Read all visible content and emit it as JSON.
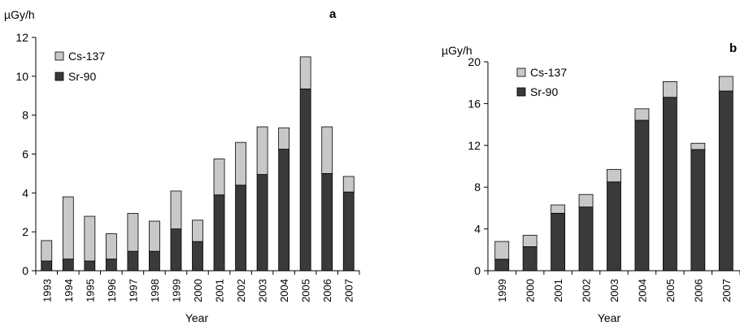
{
  "chart_data": [
    {
      "type": "bar",
      "stacked": true,
      "panel_label": "a",
      "ylabel": "µGy/h",
      "xlabel": "Year",
      "ylim": [
        0,
        12
      ],
      "yticks": [
        0,
        2,
        4,
        6,
        8,
        10,
        12
      ],
      "legend_position": "top-left",
      "categories": [
        "1993",
        "1994",
        "1995",
        "1996",
        "1997",
        "1998",
        "1999",
        "2000",
        "2001",
        "2002",
        "2003",
        "2004",
        "2005",
        "2006",
        "2007"
      ],
      "series": [
        {
          "name": "Sr-90",
          "color": "#3a3a3a",
          "values": [
            0.5,
            0.6,
            0.5,
            0.6,
            1.0,
            1.0,
            2.15,
            1.5,
            3.9,
            4.4,
            4.95,
            6.25,
            9.35,
            5.0,
            4.05
          ]
        },
        {
          "name": "Cs-137",
          "color": "#c8c8c8",
          "values": [
            1.05,
            3.2,
            2.3,
            1.3,
            1.95,
            1.55,
            1.95,
            1.1,
            1.85,
            2.2,
            2.45,
            1.1,
            1.65,
            2.4,
            0.8
          ]
        }
      ]
    },
    {
      "type": "bar",
      "stacked": true,
      "panel_label": "b",
      "ylabel": "µGy/h",
      "xlabel": "Year",
      "ylim": [
        0,
        20
      ],
      "yticks": [
        0,
        4,
        8,
        12,
        16,
        20
      ],
      "legend_position": "top-left",
      "categories": [
        "1999",
        "2000",
        "2001",
        "2002",
        "2003",
        "2004",
        "2005",
        "2006",
        "2007"
      ],
      "series": [
        {
          "name": "Sr-90",
          "color": "#3a3a3a",
          "values": [
            1.1,
            2.3,
            5.5,
            6.1,
            8.5,
            14.4,
            16.6,
            11.6,
            17.2
          ]
        },
        {
          "name": "Cs-137",
          "color": "#c8c8c8",
          "values": [
            1.7,
            1.1,
            0.8,
            1.2,
            1.2,
            1.1,
            1.5,
            0.6,
            1.4
          ]
        }
      ]
    }
  ]
}
